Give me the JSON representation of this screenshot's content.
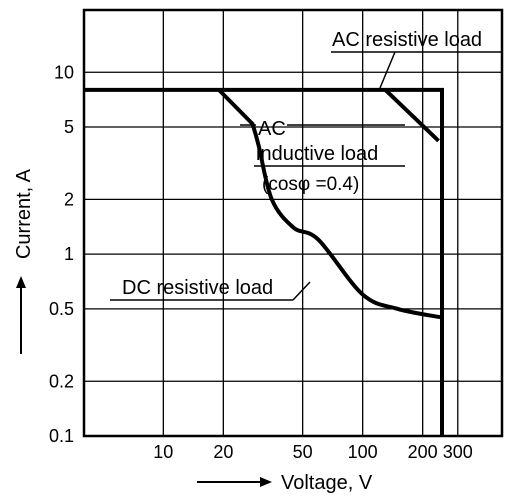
{
  "chart_data": {
    "type": "line",
    "xlabel": "Voltage, V",
    "ylabel": "Current, A",
    "x_scale": "log",
    "y_scale": "log",
    "xlim": [
      4,
      500
    ],
    "ylim": [
      0.1,
      22
    ],
    "x_ticks": [
      {
        "value": 10,
        "label": "10"
      },
      {
        "value": 20,
        "label": "20"
      },
      {
        "value": 50,
        "label": "50"
      },
      {
        "value": 100,
        "label": "100"
      },
      {
        "value": 200,
        "label": "200"
      },
      {
        "value": 300,
        "label": "300"
      }
    ],
    "x_grid": [
      10,
      20,
      50,
      100,
      200,
      300
    ],
    "y_ticks": [
      {
        "value": 0.1,
        "label": "0.1"
      },
      {
        "value": 0.2,
        "label": "0.2"
      },
      {
        "value": 0.5,
        "label": "0.5"
      },
      {
        "value": 1,
        "label": "1"
      },
      {
        "value": 2,
        "label": "2"
      },
      {
        "value": 5,
        "label": "5"
      },
      {
        "value": 10,
        "label": "10"
      }
    ],
    "grid": true,
    "series": [
      {
        "name": "AC resistive load",
        "points": [
          [
            4,
            8
          ],
          [
            250,
            8
          ],
          [
            250,
            0.1
          ]
        ]
      },
      {
        "name": "AC inductive load (cosφ =0.4)",
        "points": [
          [
            130,
            8
          ],
          [
            240,
            4.2
          ]
        ]
      },
      {
        "name": "DC resistive load",
        "points": [
          [
            19,
            8
          ],
          [
            28,
            5.2
          ],
          [
            30,
            4
          ],
          [
            35,
            2
          ],
          [
            45,
            1.4
          ],
          [
            60,
            1.2
          ],
          [
            100,
            0.6
          ],
          [
            150,
            0.5
          ],
          [
            245,
            0.45
          ]
        ]
      }
    ],
    "annotations": {
      "ac_resistive": "AC resistive load",
      "ac_inductive_line1": "AC",
      "ac_inductive_line2": "inductive load",
      "ac_inductive_line3": "(cosφ =0.4)",
      "dc_resistive": "DC resistive load"
    },
    "axis_arrows": {
      "x": "right",
      "y": "up"
    }
  }
}
